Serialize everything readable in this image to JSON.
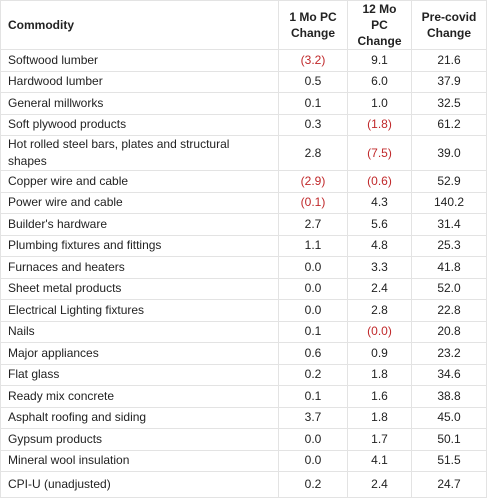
{
  "table": {
    "header": [
      "Commodity",
      "1 Mo PC Change",
      "12 Mo PC Change",
      "Pre-covid Change"
    ],
    "rows": [
      [
        "Softwood lumber",
        "(3.2)",
        "9.1",
        "21.6"
      ],
      [
        "Hardwood lumber",
        "0.5",
        "6.0",
        "37.9"
      ],
      [
        "General millworks",
        "0.1",
        "1.0",
        "32.5"
      ],
      [
        "Soft plywood products",
        "0.3",
        "(1.8)",
        "61.2"
      ],
      [
        "Hot rolled steel bars, plates and structural shapes",
        "2.8",
        "(7.5)",
        "39.0"
      ],
      [
        "Copper wire and cable",
        "(2.9)",
        "(0.6)",
        "52.9"
      ],
      [
        "Power wire and cable",
        "(0.1)",
        "4.3",
        "140.2"
      ],
      [
        "Builder's hardware",
        "2.7",
        "5.6",
        "31.4"
      ],
      [
        "Plumbing fixtures and fittings",
        "1.1",
        "4.8",
        "25.3"
      ],
      [
        "Furnaces and heaters",
        "0.0",
        "3.3",
        "41.8"
      ],
      [
        "Sheet metal products",
        "0.0",
        "2.4",
        "52.0"
      ],
      [
        "Electrical Lighting fixtures",
        "0.0",
        "2.8",
        "22.8"
      ],
      [
        "Nails",
        "0.1",
        "(0.0)",
        "20.8"
      ],
      [
        "Major appliances",
        "0.6",
        "0.9",
        "23.2"
      ],
      [
        "Flat glass",
        "0.2",
        "1.8",
        "34.6"
      ],
      [
        "Ready mix concrete",
        "0.1",
        "1.6",
        "38.8"
      ],
      [
        "Asphalt roofing and siding",
        "3.7",
        "1.8",
        "45.0"
      ],
      [
        "Gypsum products",
        "0.0",
        "1.7",
        "50.1"
      ],
      [
        "Mineral wool insulation",
        "0.0",
        "4.1",
        "51.5"
      ],
      [
        "CPI-U (unadjusted)",
        "0.2",
        "2.4",
        "24.7"
      ]
    ]
  }
}
